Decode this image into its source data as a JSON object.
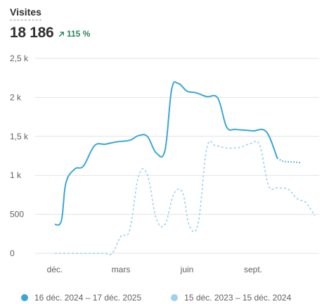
{
  "header": {
    "title": "Visites",
    "total": "18 186",
    "delta": "115 %",
    "delta_icon": "arrow-up-right-icon",
    "delta_color": "#29845a"
  },
  "colors": {
    "current": "#3aa7d6",
    "previous": "#9fd1ea",
    "grid": "#e3e3e3"
  },
  "chart_data": {
    "type": "line",
    "ylim": [
      0,
      2500
    ],
    "yticks": [
      0,
      500,
      1000,
      1500,
      2000,
      2500
    ],
    "ytick_labels": [
      "0",
      "500",
      "1 k",
      "1,5 k",
      "2 k",
      "2,5 k"
    ],
    "xlim": [
      0,
      12
    ],
    "xticks": [
      0,
      3,
      6,
      9
    ],
    "xtick_labels": [
      "déc.",
      "mars",
      "juin",
      "sept."
    ],
    "grid": true,
    "legend_position": "bottom",
    "series": [
      {
        "name": "16 déc. 2024 – 17 déc. 2025",
        "style": "solid",
        "x": [
          0,
          0.3,
          0.5,
          0.9,
          1.3,
          1.8,
          2.3,
          2.8,
          3.4,
          3.8,
          4.2,
          4.6,
          5.0,
          5.3,
          5.6,
          6.0,
          6.4,
          6.9,
          7.4,
          7.8,
          8.2,
          8.6,
          9.0,
          9.6,
          10.1,
          10.4,
          10.9,
          11.2
        ],
        "y": [
          370,
          420,
          900,
          1080,
          1120,
          1380,
          1400,
          1430,
          1450,
          1510,
          1500,
          1290,
          1320,
          2100,
          2180,
          2080,
          2060,
          2010,
          1990,
          1620,
          1590,
          1580,
          1570,
          1560,
          1220,
          1180,
          1170,
          1160
        ]
      },
      {
        "name": "15 déc. 2023 – 15 déc. 2024",
        "style": "dashed",
        "x": [
          0,
          1.0,
          2.2,
          2.6,
          3.0,
          3.4,
          3.8,
          4.2,
          4.6,
          5.0,
          5.4,
          5.8,
          6.1,
          6.5,
          6.9,
          7.3,
          7.8,
          8.4,
          8.9,
          9.3,
          9.7,
          10.1,
          10.6,
          11.0,
          11.4,
          11.8
        ],
        "y": [
          0,
          0,
          0,
          0,
          220,
          300,
          990,
          1010,
          450,
          370,
          760,
          780,
          360,
          380,
          1350,
          1380,
          1350,
          1360,
          1410,
          1390,
          870,
          840,
          820,
          700,
          650,
          480
        ]
      }
    ]
  }
}
